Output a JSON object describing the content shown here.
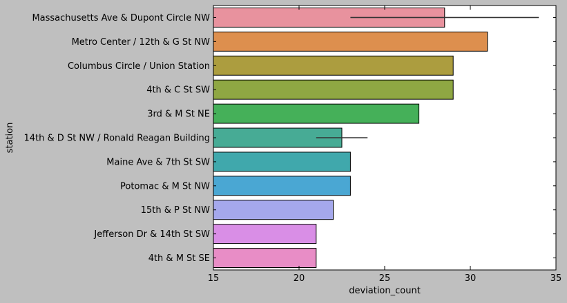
{
  "chart_data": {
    "type": "bar",
    "orientation": "horizontal",
    "xlabel": "deviation_count",
    "ylabel": "station",
    "xlim": [
      15,
      35
    ],
    "xticks": [
      15,
      20,
      25,
      30,
      35
    ],
    "grid": false,
    "categories": [
      "Massachusetts Ave & Dupont Circle NW",
      "Metro Center / 12th & G St NW",
      "Columbus Circle / Union Station",
      "4th & C St SW",
      "3rd & M St NE",
      "14th & D St NW / Ronald Reagan Building",
      "Maine Ave & 7th St SW",
      "Potomac & M St NW",
      "15th & P St NW",
      "Jefferson Dr & 14th St SW",
      "4th & M St SE"
    ],
    "values": [
      28.5,
      31,
      29,
      29,
      27,
      22.5,
      23,
      23,
      22,
      21,
      21
    ],
    "error_bars": [
      [
        23,
        34
      ],
      null,
      null,
      null,
      null,
      [
        21,
        24
      ],
      null,
      null,
      null,
      null,
      null
    ],
    "colors": [
      "#e8929e",
      "#dd8f4e",
      "#ac9d3f",
      "#8fa743",
      "#45b059",
      "#47ab95",
      "#40a8ac",
      "#4aa7d3",
      "#a5a8ec",
      "#d98ee6",
      "#e88dc6"
    ],
    "background_color": "#ffffff",
    "figure_color": "#bfbfbf"
  }
}
